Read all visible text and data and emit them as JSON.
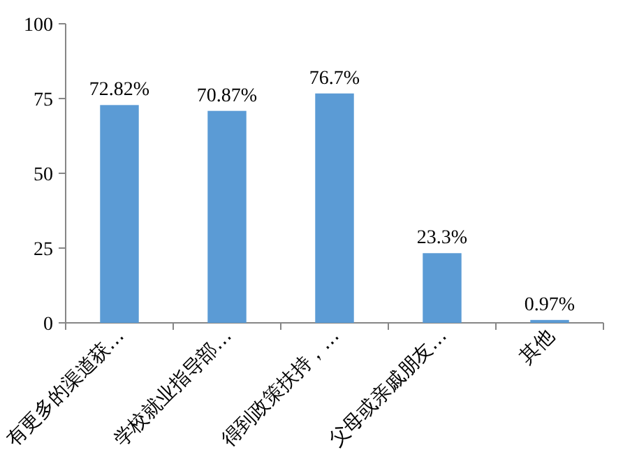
{
  "chart_data": {
    "type": "bar",
    "categories": [
      "有更多的渠道获…",
      "学校就业指导部…",
      "得到政策扶持，…",
      "父母或亲戚朋友…",
      "其他"
    ],
    "values": [
      72.82,
      70.87,
      76.7,
      23.3,
      0.97
    ],
    "value_labels": [
      "72.82%",
      "70.87%",
      "76.7%",
      "23.3%",
      "0.97%"
    ],
    "color": "#5b9bd5",
    "ylim": [
      0,
      100
    ],
    "yticks": [
      0,
      25,
      50,
      75,
      100
    ],
    "grid": false
  }
}
